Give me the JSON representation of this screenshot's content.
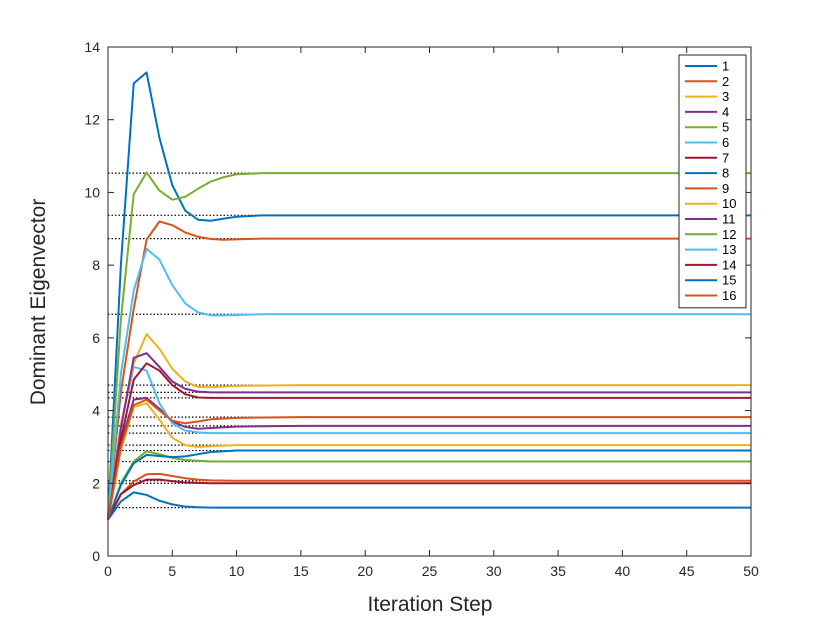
{
  "chart_data": {
    "type": "line",
    "xlabel": "Iteration Step",
    "ylabel": "Dominant Eigenvector",
    "xlim": [
      0,
      50
    ],
    "ylim": [
      0,
      14
    ],
    "xticks": [
      0,
      5,
      10,
      15,
      20,
      25,
      30,
      35,
      40,
      45,
      50
    ],
    "yticks": [
      0,
      2,
      4,
      6,
      8,
      10,
      12,
      14
    ],
    "grid": false,
    "legend_position": "top-right",
    "reference_lines_style": "dotted black horizontal lines at each series' converged value",
    "series": [
      {
        "name": "1",
        "color": "#0072BD",
        "converged": 1.33,
        "x": [
          0,
          1,
          2,
          3,
          4,
          5,
          6,
          7,
          8,
          9,
          10,
          12,
          15,
          50
        ],
        "y": [
          1.0,
          1.5,
          1.75,
          1.68,
          1.52,
          1.42,
          1.36,
          1.34,
          1.33,
          1.33,
          1.33,
          1.33,
          1.33,
          1.33
        ]
      },
      {
        "name": "2",
        "color": "#D95319",
        "converged": 2.07,
        "x": [
          0,
          1,
          2,
          3,
          4,
          5,
          6,
          7,
          8,
          10,
          15,
          50
        ],
        "y": [
          1.0,
          1.7,
          2.05,
          2.25,
          2.26,
          2.2,
          2.14,
          2.1,
          2.08,
          2.07,
          2.07,
          2.07
        ]
      },
      {
        "name": "3",
        "color": "#EDB120",
        "converged": 3.05,
        "x": [
          0,
          1,
          2,
          3,
          4,
          5,
          6,
          7,
          8,
          10,
          15,
          50
        ],
        "y": [
          1.0,
          2.9,
          4.1,
          4.2,
          3.75,
          3.25,
          3.05,
          3.0,
          3.02,
          3.05,
          3.05,
          3.05
        ]
      },
      {
        "name": "4",
        "color": "#7E2F8E",
        "converged": 3.58,
        "x": [
          0,
          1,
          2,
          3,
          4,
          5,
          6,
          7,
          8,
          10,
          15,
          50
        ],
        "y": [
          1.0,
          3.1,
          4.3,
          4.35,
          4.05,
          3.7,
          3.55,
          3.5,
          3.52,
          3.56,
          3.58,
          3.58
        ]
      },
      {
        "name": "5",
        "color": "#77AC30",
        "converged": 2.6,
        "x": [
          0,
          1,
          2,
          3,
          4,
          5,
          6,
          8,
          10,
          15,
          50
        ],
        "y": [
          1.0,
          2.0,
          2.6,
          2.88,
          2.8,
          2.7,
          2.64,
          2.6,
          2.6,
          2.6,
          2.6
        ]
      },
      {
        "name": "6",
        "color": "#4DBEEE",
        "converged": 3.38,
        "x": [
          0,
          1,
          2,
          3,
          4,
          5,
          6,
          7,
          8,
          10,
          15,
          50
        ],
        "y": [
          1.0,
          3.6,
          5.2,
          5.1,
          4.2,
          3.65,
          3.45,
          3.4,
          3.38,
          3.38,
          3.38,
          3.38
        ]
      },
      {
        "name": "7",
        "color": "#A2142F",
        "converged": 2.0,
        "x": [
          0,
          1,
          2,
          3,
          4,
          5,
          6,
          8,
          10,
          15,
          50
        ],
        "y": [
          1.0,
          1.7,
          1.95,
          2.1,
          2.1,
          2.06,
          2.02,
          2.0,
          2.0,
          2.0,
          2.0
        ]
      },
      {
        "name": "8",
        "color": "#0072BD",
        "converged": 9.37,
        "x": [
          0,
          1,
          2,
          3,
          4,
          5,
          6,
          7,
          8,
          9,
          10,
          12,
          15,
          50
        ],
        "y": [
          1.0,
          8.0,
          13.0,
          13.3,
          11.5,
          10.2,
          9.5,
          9.25,
          9.22,
          9.28,
          9.33,
          9.37,
          9.37,
          9.37
        ]
      },
      {
        "name": "9",
        "color": "#D95319",
        "converged": 8.73,
        "x": [
          0,
          1,
          2,
          3,
          4,
          5,
          6,
          7,
          8,
          9,
          10,
          12,
          15,
          50
        ],
        "y": [
          1.0,
          4.5,
          6.8,
          8.7,
          9.2,
          9.1,
          8.9,
          8.78,
          8.72,
          8.7,
          8.71,
          8.73,
          8.73,
          8.73
        ]
      },
      {
        "name": "10",
        "color": "#EDB120",
        "converged": 4.7,
        "x": [
          0,
          1,
          2,
          3,
          4,
          5,
          6,
          7,
          8,
          10,
          15,
          50
        ],
        "y": [
          1.0,
          3.6,
          5.3,
          6.1,
          5.7,
          5.15,
          4.8,
          4.65,
          4.64,
          4.68,
          4.7,
          4.7
        ]
      },
      {
        "name": "11",
        "color": "#7E2F8E",
        "converged": 4.5,
        "x": [
          0,
          1,
          2,
          3,
          4,
          5,
          6,
          7,
          8,
          10,
          15,
          50
        ],
        "y": [
          1.0,
          3.5,
          5.45,
          5.58,
          5.2,
          4.8,
          4.6,
          4.52,
          4.5,
          4.5,
          4.5,
          4.5
        ]
      },
      {
        "name": "12",
        "color": "#77AC30",
        "converged": 10.53,
        "x": [
          0,
          1,
          2,
          3,
          4,
          5,
          6,
          7,
          8,
          9,
          10,
          12,
          15,
          50
        ],
        "y": [
          1.0,
          6.5,
          9.95,
          10.55,
          10.05,
          9.8,
          9.88,
          10.1,
          10.3,
          10.42,
          10.5,
          10.53,
          10.53,
          10.53
        ]
      },
      {
        "name": "13",
        "color": "#4DBEEE",
        "converged": 6.65,
        "x": [
          0,
          1,
          2,
          3,
          4,
          5,
          6,
          7,
          8,
          9,
          10,
          12,
          15,
          50
        ],
        "y": [
          1.0,
          5.0,
          7.3,
          8.45,
          8.15,
          7.45,
          6.95,
          6.7,
          6.62,
          6.62,
          6.63,
          6.65,
          6.65,
          6.65
        ]
      },
      {
        "name": "14",
        "color": "#A2142F",
        "converged": 4.35,
        "x": [
          0,
          1,
          2,
          3,
          4,
          5,
          6,
          7,
          8,
          10,
          15,
          50
        ],
        "y": [
          1.0,
          3.2,
          4.85,
          5.3,
          5.1,
          4.7,
          4.45,
          4.36,
          4.35,
          4.35,
          4.35,
          4.35
        ]
      },
      {
        "name": "15",
        "color": "#0072BD",
        "converged": 2.9,
        "x": [
          0,
          1,
          2,
          3,
          4,
          5,
          6,
          7,
          8,
          10,
          15,
          50
        ],
        "y": [
          1.0,
          1.95,
          2.55,
          2.78,
          2.75,
          2.72,
          2.74,
          2.8,
          2.86,
          2.9,
          2.9,
          2.9
        ]
      },
      {
        "name": "16",
        "color": "#D95319",
        "converged": 3.82,
        "x": [
          0,
          1,
          2,
          3,
          4,
          5,
          6,
          7,
          8,
          10,
          15,
          50
        ],
        "y": [
          1.0,
          3.0,
          4.15,
          4.3,
          4.0,
          3.72,
          3.65,
          3.7,
          3.76,
          3.8,
          3.82,
          3.82
        ]
      }
    ]
  }
}
